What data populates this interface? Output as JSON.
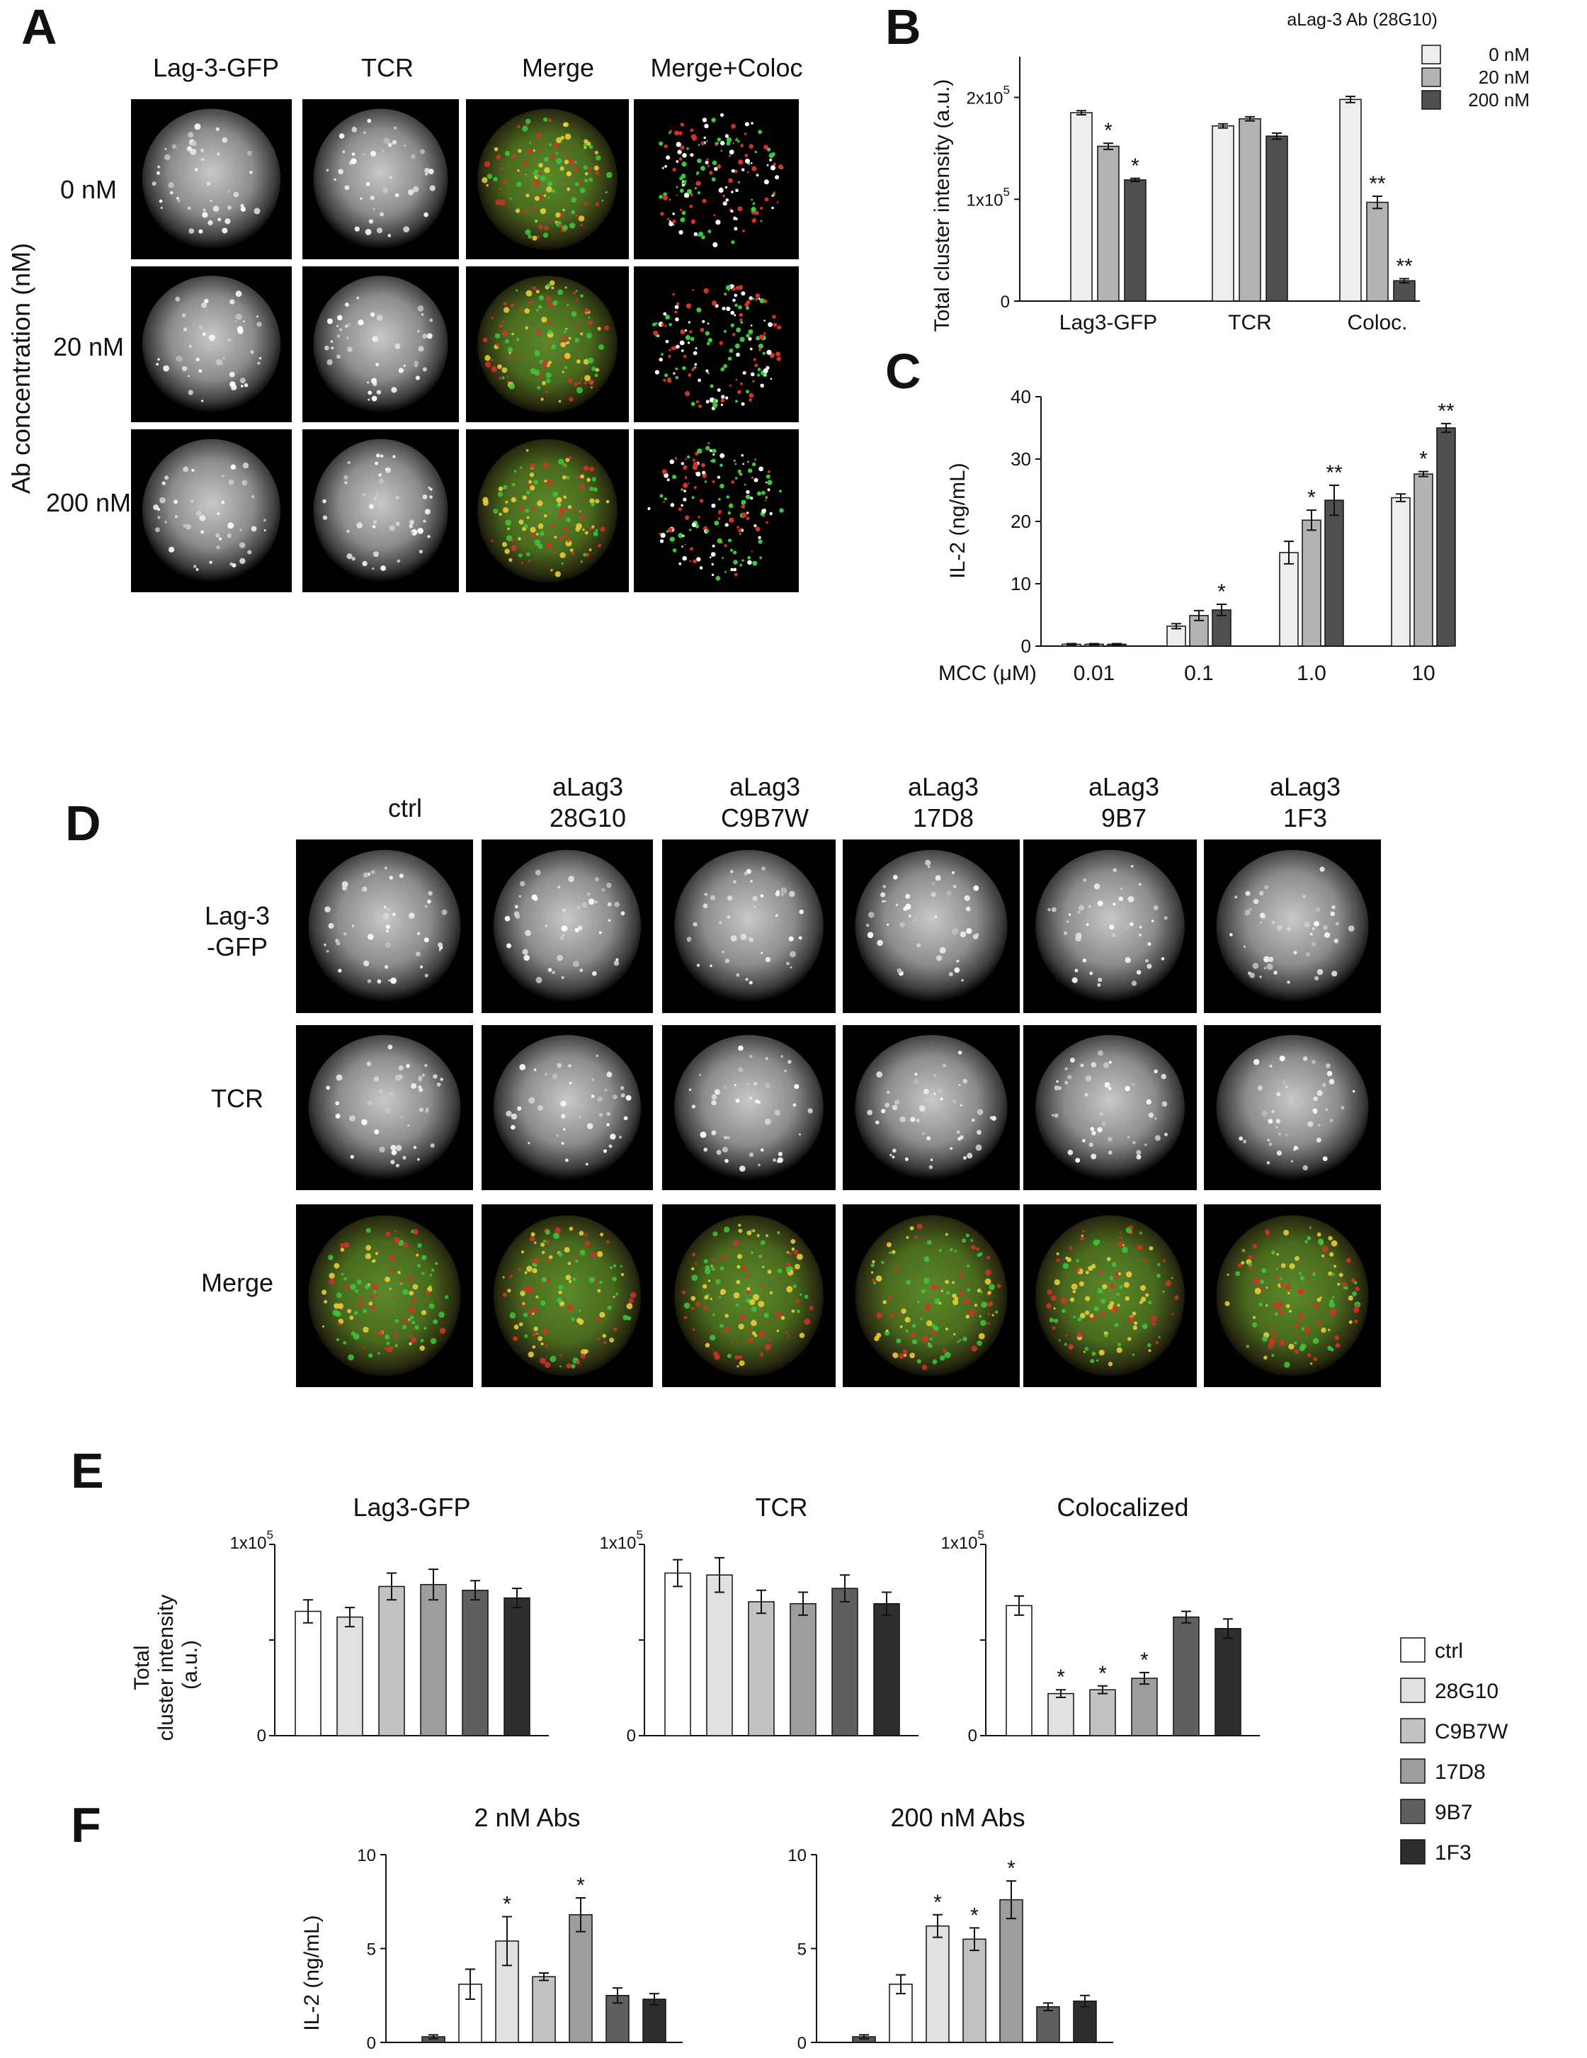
{
  "panel_letters": {
    "A": "A",
    "B": "B",
    "C": "C",
    "D": "D",
    "E": "E",
    "F": "F"
  },
  "panelA": {
    "col_headers": [
      "Lag-3-GFP",
      "TCR",
      "Merge",
      "Merge+Coloc"
    ],
    "row_labels": [
      "0 nM",
      "20 nM",
      "200 nM"
    ],
    "y_title": "Ab concentration (nM)"
  },
  "panelD": {
    "col_headers": [
      [
        "ctrl",
        ""
      ],
      [
        "aLag3",
        "28G10"
      ],
      [
        "aLag3",
        "C9B7W"
      ],
      [
        "aLag3",
        "17D8"
      ],
      [
        "aLag3",
        "9B7"
      ],
      [
        "aLag3",
        "1F3"
      ]
    ],
    "row_labels": [
      [
        "Lag-3",
        "-GFP"
      ],
      [
        "TCR",
        ""
      ],
      [
        "Merge",
        ""
      ]
    ]
  },
  "colors": {
    "shades3": [
      "#eeeeee",
      "#b3b3b3",
      "#505050"
    ],
    "shades6": [
      "#ffffff",
      "#e1e1e1",
      "#c2c2c2",
      "#9d9d9d",
      "#5f5f5f",
      "#2e2e2e"
    ],
    "green": "#3cc83c",
    "red": "#d23228",
    "yellow": "#f0d23c"
  },
  "chart_data": [
    {
      "id": "B",
      "type": "bar",
      "ylabel": "Total cluster intensity (a.u.)",
      "ytick_labels": [
        "0",
        "1x10^5",
        "2x10^5"
      ],
      "ylim": [
        0,
        240000
      ],
      "categories": [
        "Lag3-GFP",
        "TCR",
        "Coloc."
      ],
      "legend_title": "aLag-3 Ab (28G10)",
      "legend_position": "top-right",
      "series": [
        {
          "name": "0 nM",
          "values": [
            185000,
            172000,
            198000
          ],
          "errors": [
            2000,
            2000,
            3000
          ]
        },
        {
          "name": "20 nM",
          "values": [
            152000,
            179000,
            97000
          ],
          "errors": [
            3000,
            2000,
            6000
          ]
        },
        {
          "name": "200 nM",
          "values": [
            119000,
            162000,
            20000
          ],
          "errors": [
            1500,
            3000,
            2000
          ]
        }
      ],
      "annotations": [
        [
          "",
          "",
          ""
        ],
        [
          "*",
          "",
          "**"
        ],
        [
          "*",
          "",
          "**"
        ]
      ]
    },
    {
      "id": "C",
      "type": "bar",
      "ylabel": "IL-2 (ng/mL)",
      "xlabel": "MCC (μM)",
      "yticks": [
        0,
        10,
        20,
        30,
        40
      ],
      "ylim": [
        0,
        40
      ],
      "categories": [
        "0.01",
        "0.1",
        "1.0",
        "10"
      ],
      "series": [
        {
          "name": "0 nM",
          "values": [
            0.3,
            3.2,
            15,
            23.8
          ],
          "errors": [
            0.1,
            0.4,
            1.8,
            0.6
          ]
        },
        {
          "name": "20 nM",
          "values": [
            0.3,
            4.9,
            20.2,
            27.6
          ],
          "errors": [
            0.1,
            0.8,
            1.6,
            0.4
          ]
        },
        {
          "name": "200 nM",
          "values": [
            0.3,
            5.8,
            23.4,
            35
          ],
          "errors": [
            0.1,
            0.9,
            2.4,
            0.7
          ]
        }
      ],
      "annotations": [
        [
          "",
          "",
          "",
          ""
        ],
        [
          "",
          "",
          "*",
          "*"
        ],
        [
          "",
          "*",
          "**",
          "**"
        ]
      ]
    },
    {
      "id": "E",
      "type": "bar",
      "ylabel": "Total cluster intensity (a.u.)",
      "ytick_labels": [
        "0",
        "1x10^5"
      ],
      "ylim": [
        0,
        100000
      ],
      "subplots": [
        {
          "title": "Lag3-GFP",
          "values": [
            65000,
            62000,
            78000,
            79000,
            76000,
            72000
          ],
          "errors": [
            6000,
            5000,
            7000,
            8000,
            5000,
            5000
          ],
          "annotations": [
            "",
            "",
            "",
            "",
            "",
            ""
          ]
        },
        {
          "title": "TCR",
          "values": [
            85000,
            84000,
            70000,
            69000,
            77000,
            69000
          ],
          "errors": [
            7000,
            9000,
            6000,
            6000,
            7000,
            6000
          ],
          "annotations": [
            "",
            "",
            "",
            "",
            "",
            ""
          ]
        },
        {
          "title": "Colocalized",
          "values": [
            68000,
            22000,
            24000,
            30000,
            62000,
            56000
          ],
          "errors": [
            5000,
            2000,
            2000,
            3000,
            3000,
            5000
          ],
          "annotations": [
            "",
            "*",
            "*",
            "*",
            "",
            ""
          ]
        }
      ],
      "legend": [
        "ctrl",
        "28G10",
        "C9B7W",
        "17D8",
        "9B7",
        "1F3"
      ],
      "legend_position": "right"
    },
    {
      "id": "F",
      "type": "bar",
      "ylabel": "IL-2 (ng/mL)",
      "yticks": [
        0,
        5,
        10
      ],
      "ylim": [
        0,
        10
      ],
      "subplots": [
        {
          "title": "2 nM Abs",
          "values": [
            0.3,
            3.1,
            5.4,
            3.5,
            6.8,
            2.5,
            2.3
          ],
          "errors": [
            0.1,
            0.8,
            1.3,
            0.2,
            0.9,
            0.4,
            0.3
          ],
          "annotations": [
            "",
            "",
            "*",
            "",
            "*",
            "",
            ""
          ]
        },
        {
          "title": "200 nM Abs",
          "values": [
            0.3,
            3.1,
            6.2,
            5.5,
            7.6,
            1.9,
            2.2
          ],
          "errors": [
            0.1,
            0.5,
            0.6,
            0.6,
            1.0,
            0.2,
            0.3
          ],
          "annotations": [
            "",
            "",
            "*",
            "*",
            "*",
            "",
            ""
          ]
        }
      ]
    }
  ]
}
